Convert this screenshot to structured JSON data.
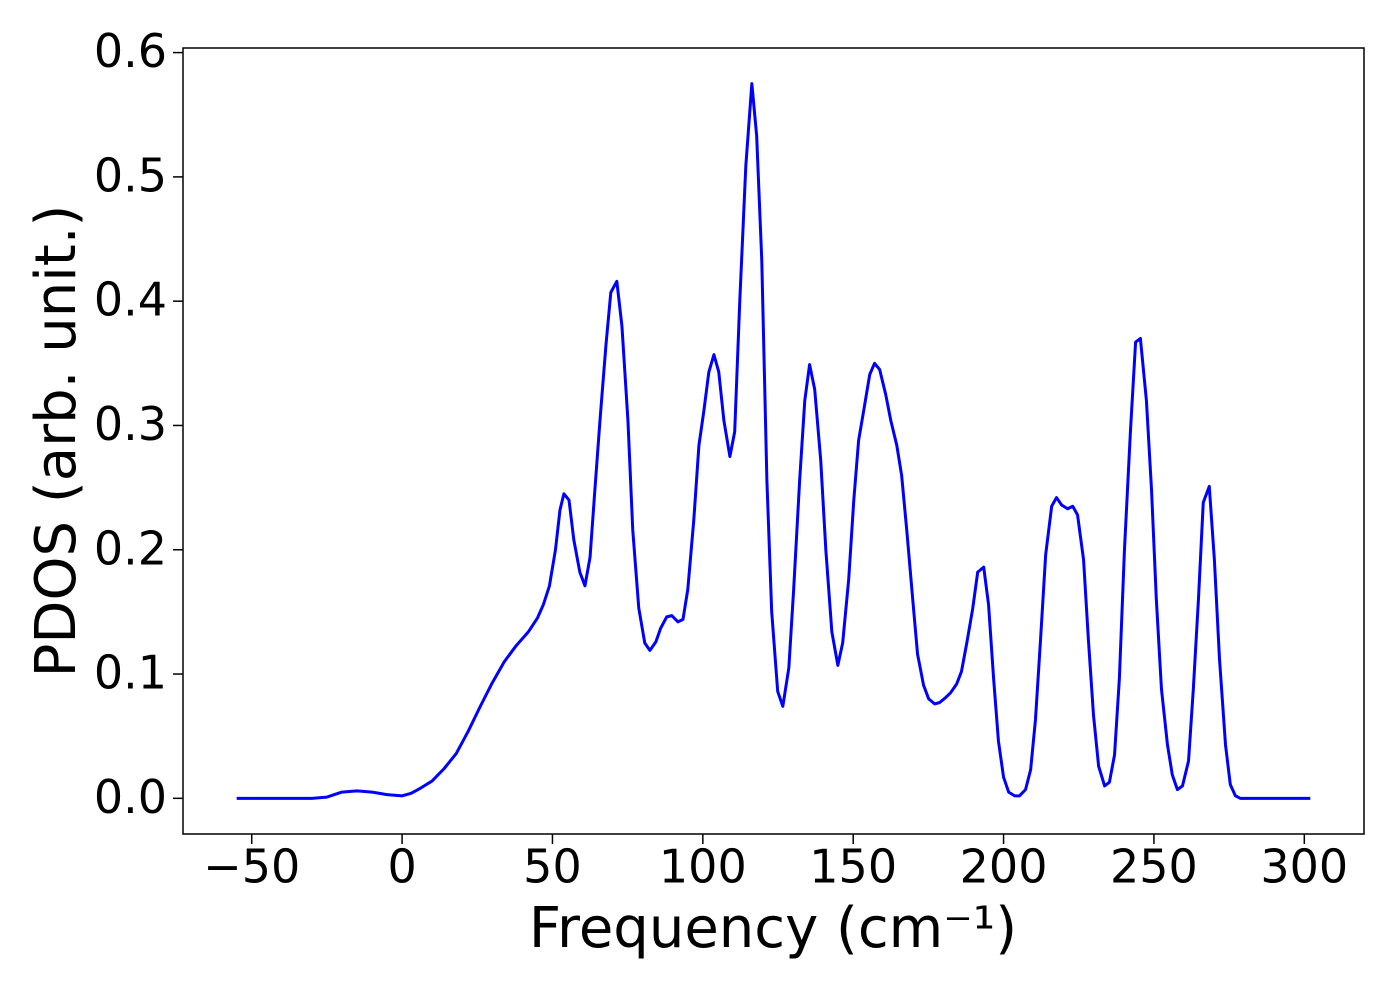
{
  "chart_data": {
    "type": "line",
    "xlabel": "Frequency (cm⁻¹)",
    "ylabel": "PDOS (arb. unit.)",
    "x": [
      -55,
      -50,
      -40,
      -30,
      -25,
      -20,
      -15,
      -10,
      -5,
      0,
      3,
      6,
      10,
      14,
      18,
      22,
      26,
      30,
      34,
      38,
      42,
      45,
      47,
      49,
      51,
      52.5,
      53.8,
      55.5,
      57.1,
      59.1,
      60.8,
      62.5,
      64.1,
      65.8,
      67.8,
      69.4,
      71.4,
      73.1,
      75.1,
      76.7,
      78.7,
      80.7,
      82.4,
      84.4,
      86,
      88,
      89.7,
      91.7,
      93.4,
      95,
      97,
      98.7,
      100.3,
      102,
      103.7,
      105.3,
      107,
      109,
      110.6,
      112.3,
      114.3,
      116.3,
      117.9,
      119.6,
      121.3,
      122.9,
      124.9,
      126.6,
      128.6,
      130.2,
      132.2,
      133.9,
      135.5,
      137.2,
      139.2,
      140.9,
      142.9,
      144.9,
      146.5,
      148.5,
      150.2,
      151.8,
      153.5,
      155.5,
      157.1,
      158.8,
      160.8,
      162.5,
      164.5,
      166.1,
      167.8,
      169.8,
      171.4,
      173.4,
      175.1,
      177.1,
      178.7,
      180.7,
      182.4,
      184.4,
      186,
      187.7,
      189.7,
      191.4,
      193.4,
      195,
      196.7,
      198.3,
      200,
      201.7,
      203.7,
      205.3,
      207.3,
      209,
      210.6,
      212.3,
      214,
      216,
      217.6,
      219.3,
      221.3,
      223,
      224.6,
      226.6,
      228.2,
      229.9,
      231.6,
      233.6,
      235.2,
      236.9,
      238.5,
      240.2,
      242.2,
      243.9,
      245.5,
      247.5,
      249.2,
      250.8,
      252.5,
      254.5,
      256.1,
      257.8,
      259.5,
      261.5,
      263.1,
      264.8,
      266.4,
      268.4,
      270.1,
      271.8,
      273.8,
      275.4,
      277.1,
      278.7,
      285,
      295,
      302
    ],
    "series": [
      {
        "color": "#0000ff",
        "values": [
          0,
          0,
          0,
          0,
          0.001,
          0.005,
          0.006,
          0.005,
          0.003,
          0.002,
          0.004,
          0.008,
          0.014,
          0.024,
          0.036,
          0.054,
          0.074,
          0.093,
          0.11,
          0.123,
          0.134,
          0.145,
          0.156,
          0.171,
          0.2,
          0.232,
          0.245,
          0.24,
          0.208,
          0.182,
          0.171,
          0.194,
          0.248,
          0.304,
          0.365,
          0.407,
          0.416,
          0.38,
          0.304,
          0.216,
          0.153,
          0.125,
          0.119,
          0.126,
          0.137,
          0.146,
          0.147,
          0.142,
          0.144,
          0.168,
          0.224,
          0.284,
          0.311,
          0.343,
          0.357,
          0.343,
          0.304,
          0.275,
          0.295,
          0.401,
          0.509,
          0.575,
          0.533,
          0.433,
          0.256,
          0.15,
          0.086,
          0.074,
          0.105,
          0.168,
          0.256,
          0.32,
          0.349,
          0.329,
          0.272,
          0.2,
          0.134,
          0.107,
          0.125,
          0.176,
          0.24,
          0.288,
          0.312,
          0.341,
          0.35,
          0.345,
          0.325,
          0.304,
          0.284,
          0.26,
          0.216,
          0.16,
          0.116,
          0.091,
          0.08,
          0.076,
          0.077,
          0.081,
          0.085,
          0.092,
          0.102,
          0.124,
          0.152,
          0.182,
          0.186,
          0.156,
          0.096,
          0.046,
          0.017,
          0.005,
          0.002,
          0.002,
          0.007,
          0.023,
          0.063,
          0.128,
          0.196,
          0.235,
          0.242,
          0.236,
          0.233,
          0.235,
          0.228,
          0.192,
          0.128,
          0.067,
          0.026,
          0.01,
          0.013,
          0.035,
          0.096,
          0.2,
          0.296,
          0.367,
          0.37,
          0.32,
          0.248,
          0.16,
          0.088,
          0.043,
          0.019,
          0.007,
          0.01,
          0.03,
          0.088,
          0.16,
          0.238,
          0.251,
          0.192,
          0.112,
          0.043,
          0.011,
          0.002,
          0,
          0,
          0,
          0
        ]
      }
    ],
    "xlim": [
      -72.85,
      319.85
    ],
    "ylim": [
      -0.0287,
      0.6037
    ],
    "xticks": [
      {
        "value": -50,
        "label": "−50"
      },
      0,
      50,
      100,
      150,
      200,
      250,
      300
    ],
    "yticks": [
      {
        "value": 0,
        "label": "0.0"
      },
      0.1,
      0.2,
      0.3,
      0.4,
      0.5,
      0.6
    ],
    "grid": false
  }
}
